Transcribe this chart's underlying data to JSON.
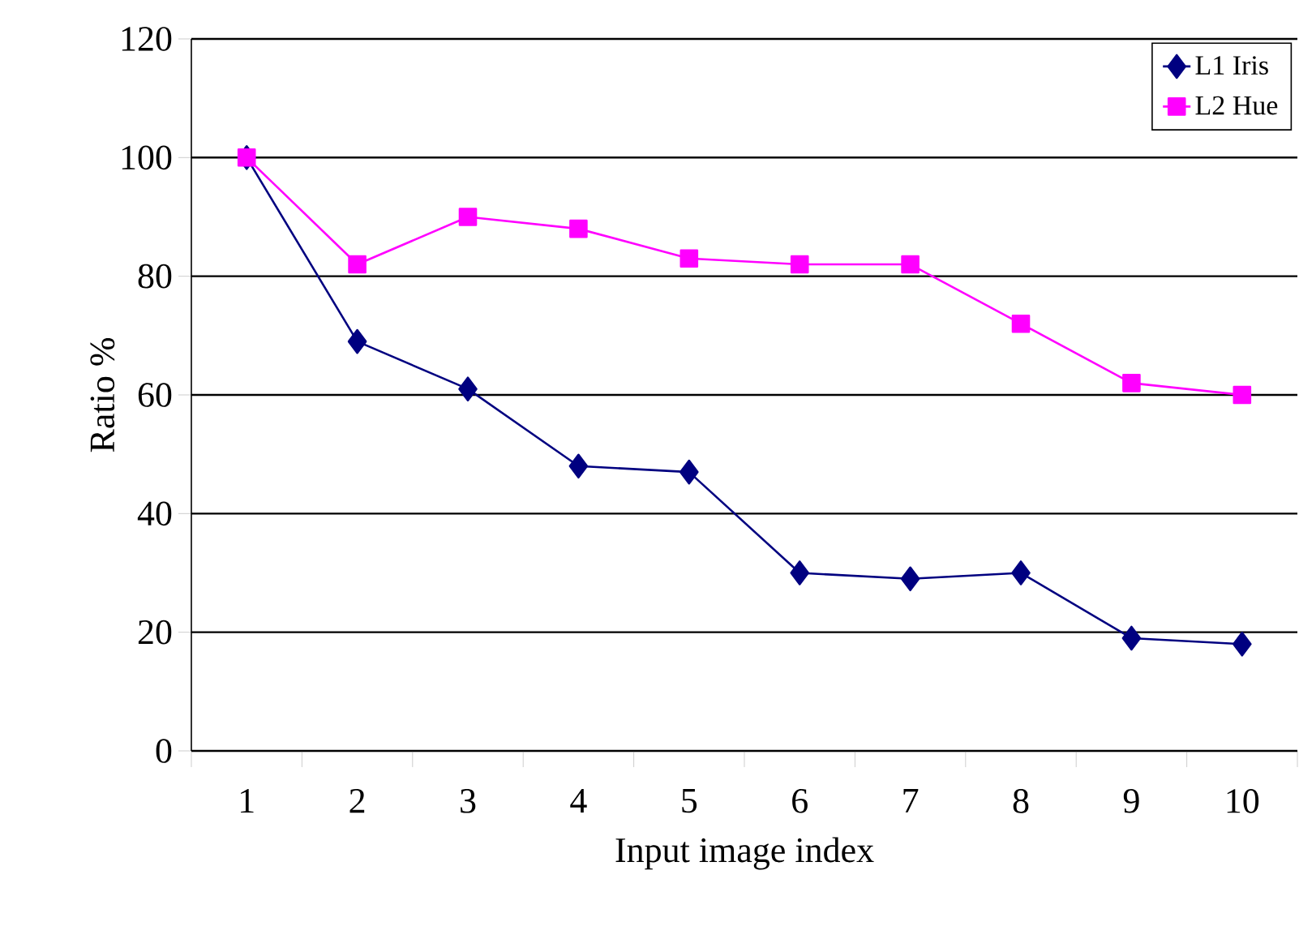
{
  "chart_data": {
    "type": "line",
    "xlabel": "Input image index",
    "ylabel": "Ratio %",
    "categories": [
      "1",
      "2",
      "3",
      "4",
      "5",
      "6",
      "7",
      "8",
      "9",
      "10"
    ],
    "series": [
      {
        "name": "L1 Iris",
        "color": "#000080",
        "marker": "diamond",
        "values": [
          100,
          69,
          61,
          48,
          47,
          30,
          29,
          30,
          19,
          18
        ]
      },
      {
        "name": "L2 Hue",
        "color": "#ff00ff",
        "marker": "square",
        "values": [
          100,
          82,
          90,
          88,
          83,
          82,
          82,
          72,
          62,
          60
        ]
      }
    ],
    "ylim": [
      0,
      120
    ],
    "yticks": [
      0,
      20,
      40,
      60,
      80,
      100,
      120
    ],
    "grid": "y",
    "legend": "top right",
    "line_style": "solid"
  }
}
